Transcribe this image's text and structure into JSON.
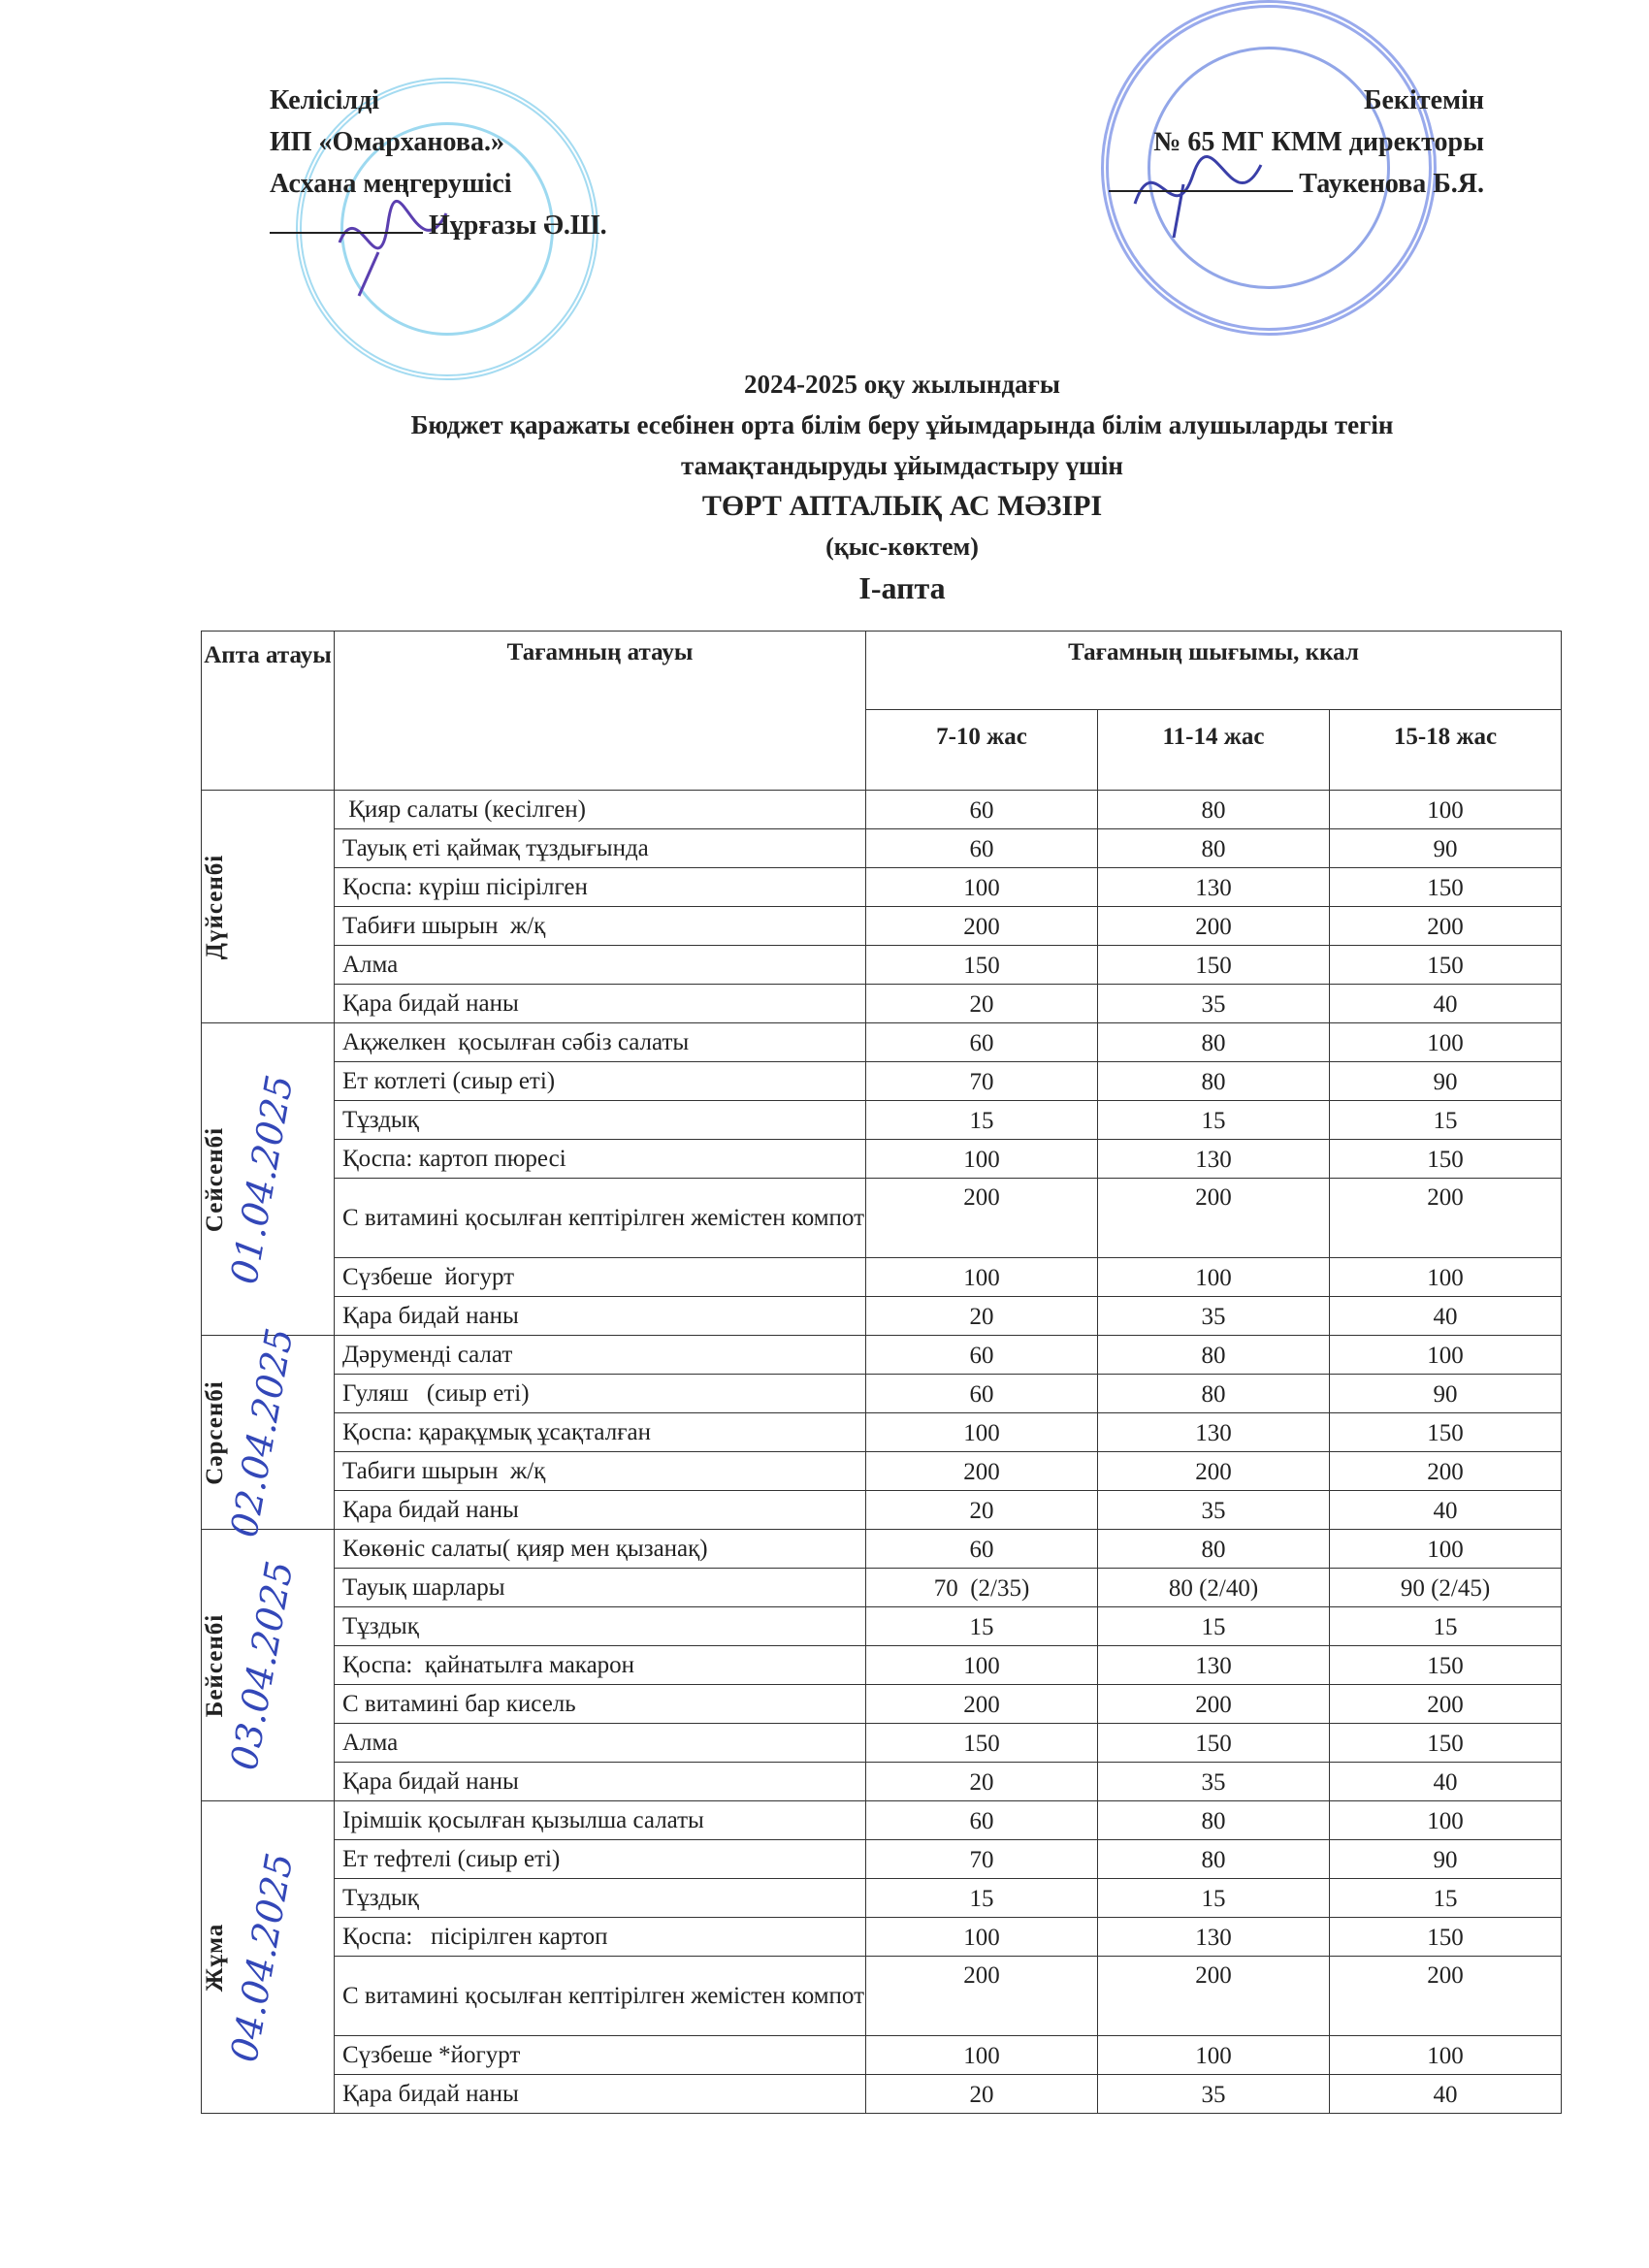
{
  "approval_left": {
    "line1": "Келісілді",
    "line2": "ИП «Омарханова.»",
    "line3": "Асхана меңгерушісі",
    "signer": "Нұрғазы  Ә.Ш."
  },
  "approval_right": {
    "line1": "Бекітемін",
    "line2": "№ 65 МГ КММ директоры",
    "signer": "Таукенова Б.Я."
  },
  "title": {
    "line1": "2024-2025 оқу жылындағы",
    "line2": "Бюджет қаражаты есебінен орта білім беру ұйымдарында білім алушыларды тегін",
    "line3": "тамақтандыруды ұйымдастыру үшін",
    "line4": "ТӨРТ АПТАЛЫҚ АС МӘЗІРІ",
    "season": "(қыс-көктем)",
    "week": "І-апта"
  },
  "stamp_colors": {
    "left": "#5bc0e6",
    "right": "#4a6ad8",
    "handwriting": "#3347b8"
  },
  "table": {
    "headers": {
      "day": "Апта атауы",
      "dish": "Тағамның атауы",
      "kcal": "Тағамның шығымы, ккал",
      "ages": [
        "7-10 жас",
        "11-14 жас",
        "15-18 жас"
      ]
    },
    "days": [
      {
        "name": "Дүйсенбі",
        "date_handwritten": "",
        "rows": [
          {
            "dish": " Қияр салаты (кесілген)",
            "v": [
              "60",
              "80",
              "100"
            ]
          },
          {
            "dish": "Тауық еті қаймақ тұздығында",
            "v": [
              "60",
              "80",
              "90"
            ]
          },
          {
            "dish": "Қоспа: күріш пісірілген",
            "v": [
              "100",
              "130",
              "150"
            ]
          },
          {
            "dish": "Табиғи шырын  ж/қ",
            "v": [
              "200",
              "200",
              "200"
            ]
          },
          {
            "dish": "Алма",
            "v": [
              "150",
              "150",
              "150"
            ]
          },
          {
            "dish": "Қара бидай наны",
            "v": [
              "20",
              "35",
              "40"
            ]
          }
        ]
      },
      {
        "name": "Сейсенбі",
        "date_handwritten": "01.04.2025",
        "rows": [
          {
            "dish": "Ақжелкен  қосылған сәбіз салаты",
            "v": [
              "60",
              "80",
              "100"
            ]
          },
          {
            "dish": "Ет котлеті (сиыр еті)",
            "v": [
              "70",
              "80",
              "90"
            ]
          },
          {
            "dish": "Тұздық",
            "v": [
              "15",
              "15",
              "15"
            ]
          },
          {
            "dish": "Қоспа: картоп пюресі",
            "v": [
              "100",
              "130",
              "150"
            ]
          },
          {
            "dish": "С витамині қосылған кептірілген жемістен компот",
            "v": [
              "200",
              "200",
              "200"
            ],
            "double": true
          },
          {
            "dish": "Сүзбеше  йогурт",
            "v": [
              "100",
              "100",
              "100"
            ]
          },
          {
            "dish": "Қара бидай наны",
            "v": [
              "20",
              "35",
              "40"
            ]
          }
        ]
      },
      {
        "name": "Сәрсенбі",
        "date_handwritten": "02.04.2025",
        "rows": [
          {
            "dish": "Дәруменді салат",
            "v": [
              "60",
              "80",
              "100"
            ]
          },
          {
            "dish": "Гуляш   (сиыр еті)",
            "v": [
              "60",
              "80",
              "90"
            ]
          },
          {
            "dish": "Қоспа: қарақұмық ұсақталған",
            "v": [
              "100",
              "130",
              "150"
            ]
          },
          {
            "dish": "Табиги шырын  ж/қ",
            "v": [
              "200",
              "200",
              "200"
            ]
          },
          {
            "dish": "Қара бидай наны",
            "v": [
              "20",
              "35",
              "40"
            ]
          }
        ]
      },
      {
        "name": "Бейсенбі",
        "date_handwritten": "03.04.2025",
        "rows": [
          {
            "dish": "Көкөніс салаты( қияр мен қызанақ)",
            "v": [
              "60",
              "80",
              "100"
            ]
          },
          {
            "dish": "Тауық шарлары",
            "v": [
              "70  (2/35)",
              "80 (2/40)",
              "90 (2/45)"
            ]
          },
          {
            "dish": "Тұздық",
            "v": [
              "15",
              "15",
              "15"
            ]
          },
          {
            "dish": "Қоспа:  қайнатылға макарон",
            "v": [
              "100",
              "130",
              "150"
            ]
          },
          {
            "dish": "С витамині бар кисель",
            "v": [
              "200",
              "200",
              "200"
            ]
          },
          {
            "dish": "Алма",
            "v": [
              "150",
              "150",
              "150"
            ]
          },
          {
            "dish": "Қара бидай наны",
            "v": [
              "20",
              "35",
              "40"
            ]
          }
        ]
      },
      {
        "name": "Жұма",
        "date_handwritten": "04.04.2025",
        "rows": [
          {
            "dish": "Ірімшік қосылған қызылша салаты",
            "v": [
              "60",
              "80",
              "100"
            ]
          },
          {
            "dish": "Ет тефтелі (сиыр еті)",
            "v": [
              "70",
              "80",
              "90"
            ]
          },
          {
            "dish": "Тұздық",
            "v": [
              "15",
              "15",
              "15"
            ]
          },
          {
            "dish": "Қоспа:   пісірілген картоп",
            "v": [
              "100",
              "130",
              "150"
            ]
          },
          {
            "dish": "С витамині қосылған кептірілген жемістен компот",
            "v": [
              "200",
              "200",
              "200"
            ],
            "double": true
          },
          {
            "dish": "Сүзбеше *йогурт",
            "v": [
              "100",
              "100",
              "100"
            ]
          },
          {
            "dish": "Қара бидай наны",
            "v": [
              "20",
              "35",
              "40"
            ]
          }
        ]
      }
    ]
  }
}
